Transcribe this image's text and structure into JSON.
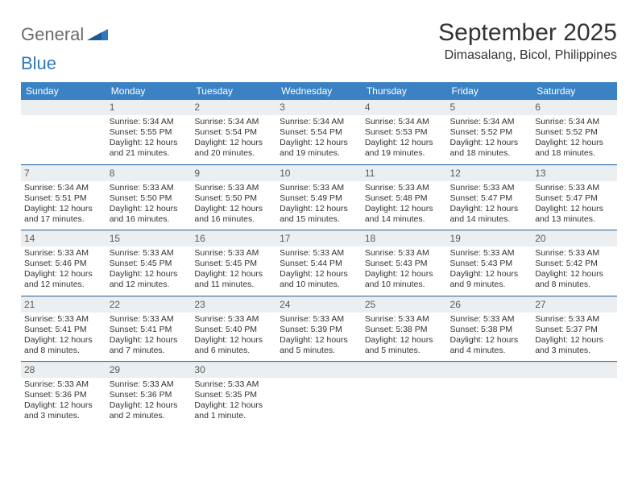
{
  "logo": {
    "part1": "General",
    "part2": "Blue"
  },
  "title": "September 2025",
  "location": "Dimasalang, Bicol, Philippines",
  "colors": {
    "header_bg": "#3b82c4",
    "header_text": "#ffffff",
    "daynum_bg": "#eceff1",
    "border": "#2f6fa8",
    "text": "#333333",
    "logo_gray": "#6b6b6b",
    "logo_blue": "#2f78bf"
  },
  "typography": {
    "title_size": 30,
    "location_size": 16,
    "dow_size": 12,
    "daynum_size": 12,
    "body_size": 10.5
  },
  "daysOfWeek": [
    "Sunday",
    "Monday",
    "Tuesday",
    "Wednesday",
    "Thursday",
    "Friday",
    "Saturday"
  ],
  "weeks": [
    [
      {
        "n": "",
        "sr": "",
        "ss": "",
        "dl1": "",
        "dl2": ""
      },
      {
        "n": "1",
        "sr": "Sunrise: 5:34 AM",
        "ss": "Sunset: 5:55 PM",
        "dl1": "Daylight: 12 hours",
        "dl2": "and 21 minutes."
      },
      {
        "n": "2",
        "sr": "Sunrise: 5:34 AM",
        "ss": "Sunset: 5:54 PM",
        "dl1": "Daylight: 12 hours",
        "dl2": "and 20 minutes."
      },
      {
        "n": "3",
        "sr": "Sunrise: 5:34 AM",
        "ss": "Sunset: 5:54 PM",
        "dl1": "Daylight: 12 hours",
        "dl2": "and 19 minutes."
      },
      {
        "n": "4",
        "sr": "Sunrise: 5:34 AM",
        "ss": "Sunset: 5:53 PM",
        "dl1": "Daylight: 12 hours",
        "dl2": "and 19 minutes."
      },
      {
        "n": "5",
        "sr": "Sunrise: 5:34 AM",
        "ss": "Sunset: 5:52 PM",
        "dl1": "Daylight: 12 hours",
        "dl2": "and 18 minutes."
      },
      {
        "n": "6",
        "sr": "Sunrise: 5:34 AM",
        "ss": "Sunset: 5:52 PM",
        "dl1": "Daylight: 12 hours",
        "dl2": "and 18 minutes."
      }
    ],
    [
      {
        "n": "7",
        "sr": "Sunrise: 5:34 AM",
        "ss": "Sunset: 5:51 PM",
        "dl1": "Daylight: 12 hours",
        "dl2": "and 17 minutes."
      },
      {
        "n": "8",
        "sr": "Sunrise: 5:33 AM",
        "ss": "Sunset: 5:50 PM",
        "dl1": "Daylight: 12 hours",
        "dl2": "and 16 minutes."
      },
      {
        "n": "9",
        "sr": "Sunrise: 5:33 AM",
        "ss": "Sunset: 5:50 PM",
        "dl1": "Daylight: 12 hours",
        "dl2": "and 16 minutes."
      },
      {
        "n": "10",
        "sr": "Sunrise: 5:33 AM",
        "ss": "Sunset: 5:49 PM",
        "dl1": "Daylight: 12 hours",
        "dl2": "and 15 minutes."
      },
      {
        "n": "11",
        "sr": "Sunrise: 5:33 AM",
        "ss": "Sunset: 5:48 PM",
        "dl1": "Daylight: 12 hours",
        "dl2": "and 14 minutes."
      },
      {
        "n": "12",
        "sr": "Sunrise: 5:33 AM",
        "ss": "Sunset: 5:47 PM",
        "dl1": "Daylight: 12 hours",
        "dl2": "and 14 minutes."
      },
      {
        "n": "13",
        "sr": "Sunrise: 5:33 AM",
        "ss": "Sunset: 5:47 PM",
        "dl1": "Daylight: 12 hours",
        "dl2": "and 13 minutes."
      }
    ],
    [
      {
        "n": "14",
        "sr": "Sunrise: 5:33 AM",
        "ss": "Sunset: 5:46 PM",
        "dl1": "Daylight: 12 hours",
        "dl2": "and 12 minutes."
      },
      {
        "n": "15",
        "sr": "Sunrise: 5:33 AM",
        "ss": "Sunset: 5:45 PM",
        "dl1": "Daylight: 12 hours",
        "dl2": "and 12 minutes."
      },
      {
        "n": "16",
        "sr": "Sunrise: 5:33 AM",
        "ss": "Sunset: 5:45 PM",
        "dl1": "Daylight: 12 hours",
        "dl2": "and 11 minutes."
      },
      {
        "n": "17",
        "sr": "Sunrise: 5:33 AM",
        "ss": "Sunset: 5:44 PM",
        "dl1": "Daylight: 12 hours",
        "dl2": "and 10 minutes."
      },
      {
        "n": "18",
        "sr": "Sunrise: 5:33 AM",
        "ss": "Sunset: 5:43 PM",
        "dl1": "Daylight: 12 hours",
        "dl2": "and 10 minutes."
      },
      {
        "n": "19",
        "sr": "Sunrise: 5:33 AM",
        "ss": "Sunset: 5:43 PM",
        "dl1": "Daylight: 12 hours",
        "dl2": "and 9 minutes."
      },
      {
        "n": "20",
        "sr": "Sunrise: 5:33 AM",
        "ss": "Sunset: 5:42 PM",
        "dl1": "Daylight: 12 hours",
        "dl2": "and 8 minutes."
      }
    ],
    [
      {
        "n": "21",
        "sr": "Sunrise: 5:33 AM",
        "ss": "Sunset: 5:41 PM",
        "dl1": "Daylight: 12 hours",
        "dl2": "and 8 minutes."
      },
      {
        "n": "22",
        "sr": "Sunrise: 5:33 AM",
        "ss": "Sunset: 5:41 PM",
        "dl1": "Daylight: 12 hours",
        "dl2": "and 7 minutes."
      },
      {
        "n": "23",
        "sr": "Sunrise: 5:33 AM",
        "ss": "Sunset: 5:40 PM",
        "dl1": "Daylight: 12 hours",
        "dl2": "and 6 minutes."
      },
      {
        "n": "24",
        "sr": "Sunrise: 5:33 AM",
        "ss": "Sunset: 5:39 PM",
        "dl1": "Daylight: 12 hours",
        "dl2": "and 5 minutes."
      },
      {
        "n": "25",
        "sr": "Sunrise: 5:33 AM",
        "ss": "Sunset: 5:38 PM",
        "dl1": "Daylight: 12 hours",
        "dl2": "and 5 minutes."
      },
      {
        "n": "26",
        "sr": "Sunrise: 5:33 AM",
        "ss": "Sunset: 5:38 PM",
        "dl1": "Daylight: 12 hours",
        "dl2": "and 4 minutes."
      },
      {
        "n": "27",
        "sr": "Sunrise: 5:33 AM",
        "ss": "Sunset: 5:37 PM",
        "dl1": "Daylight: 12 hours",
        "dl2": "and 3 minutes."
      }
    ],
    [
      {
        "n": "28",
        "sr": "Sunrise: 5:33 AM",
        "ss": "Sunset: 5:36 PM",
        "dl1": "Daylight: 12 hours",
        "dl2": "and 3 minutes."
      },
      {
        "n": "29",
        "sr": "Sunrise: 5:33 AM",
        "ss": "Sunset: 5:36 PM",
        "dl1": "Daylight: 12 hours",
        "dl2": "and 2 minutes."
      },
      {
        "n": "30",
        "sr": "Sunrise: 5:33 AM",
        "ss": "Sunset: 5:35 PM",
        "dl1": "Daylight: 12 hours",
        "dl2": "and 1 minute."
      },
      {
        "n": "",
        "sr": "",
        "ss": "",
        "dl1": "",
        "dl2": ""
      },
      {
        "n": "",
        "sr": "",
        "ss": "",
        "dl1": "",
        "dl2": ""
      },
      {
        "n": "",
        "sr": "",
        "ss": "",
        "dl1": "",
        "dl2": ""
      },
      {
        "n": "",
        "sr": "",
        "ss": "",
        "dl1": "",
        "dl2": ""
      }
    ]
  ]
}
